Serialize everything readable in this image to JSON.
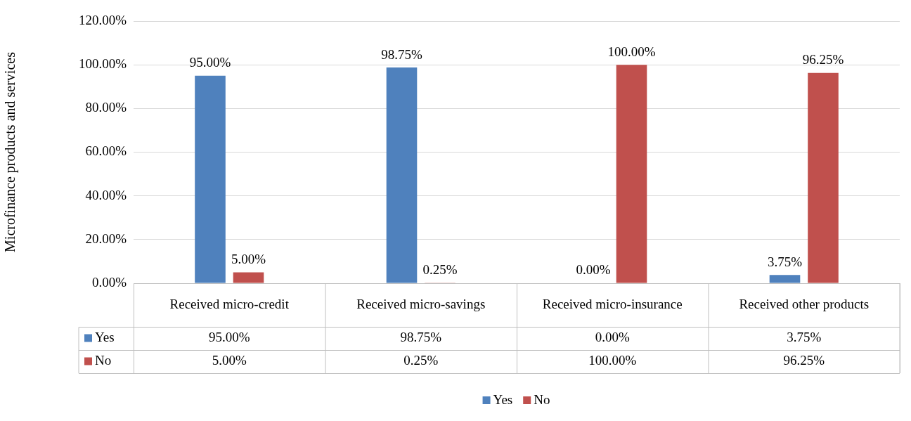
{
  "chart_data": {
    "type": "bar",
    "ylabel": "Microfinance products and services",
    "categories": [
      "Received micro-credit",
      "Received micro-savings",
      "Received micro-insurance",
      "Received other products"
    ],
    "series": [
      {
        "name": "Yes",
        "color": "#4f81bd",
        "values": [
          95,
          98.75,
          0,
          3.75
        ],
        "value_labels": [
          "95.00%",
          "98.75%",
          "0.00%",
          "3.75%"
        ]
      },
      {
        "name": "No",
        "color": "#c0504d",
        "values": [
          5,
          0.25,
          100,
          96.25
        ],
        "value_labels": [
          "5.00%",
          "0.25%",
          "100.00%",
          "96.25%"
        ]
      }
    ],
    "ylim": [
      0,
      120
    ],
    "yticks": [
      {
        "value": 0,
        "label": "0.00%"
      },
      {
        "value": 20,
        "label": "20.00%"
      },
      {
        "value": 40,
        "label": "40.00%"
      },
      {
        "value": 60,
        "label": "60.00%"
      },
      {
        "value": 80,
        "label": "80.00%"
      },
      {
        "value": 100,
        "label": "100.00%"
      },
      {
        "value": 120,
        "label": "120.00%"
      }
    ],
    "grid": "y",
    "legend": "bottom"
  }
}
